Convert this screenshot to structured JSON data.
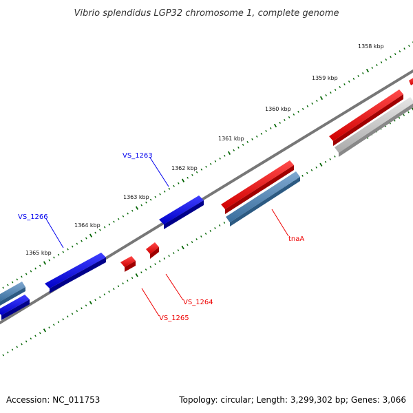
{
  "title": "Vibrio splendidus LGP32 chromosome 1, complete genome",
  "ruler_labels": [
    "1358 kbp",
    "1359 kbp",
    "1360 kbp",
    "1361 kbp",
    "1362 kbp",
    "1363 kbp",
    "1364 kbp",
    "1365 kbp"
  ],
  "gene_labels": {
    "vs1263": "VS_1263",
    "vs1266": "VS_1266",
    "tnaA": "tnaA",
    "vs1264": "VS_1264",
    "vs1265": "VS_1265"
  },
  "footer": {
    "accession": "Accession: NC_011753",
    "stats": "Topology: circular; Length: 3,299,302 bp; Genes: 3,066"
  },
  "colors": {
    "forward_cds": "#0000ee",
    "reverse_cds": "#ee0000",
    "forward_gene_track": "#4682b4",
    "reverse_gene_track": "#cccccc",
    "backbone": "#777777",
    "tick": "#006400"
  }
}
